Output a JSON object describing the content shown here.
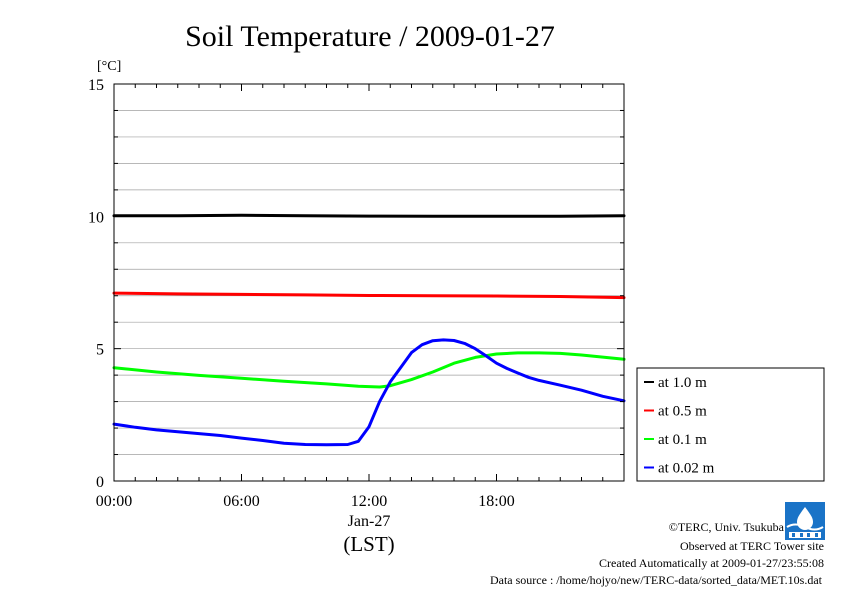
{
  "chart_data": {
    "type": "line",
    "title": "Soil Temperature / 2009-01-27",
    "yunit": "[°C]",
    "xlabel": "(LST)",
    "xdate_label": "Jan-27",
    "ylim": [
      0,
      15
    ],
    "xlim": [
      0,
      24
    ],
    "yticks": [
      0,
      5,
      10,
      15
    ],
    "xticks": [
      0,
      6,
      12,
      18
    ],
    "xtick_labels": [
      "00:00",
      "06:00",
      "12:00",
      "18:00"
    ],
    "grid": true,
    "legend_position": "right",
    "series": [
      {
        "name": "at 1.0 m",
        "color": "#000000",
        "x": [
          0,
          3,
          6,
          9,
          12,
          15,
          18,
          21,
          24
        ],
        "y": [
          10.02,
          10.02,
          10.04,
          10.02,
          10.01,
          10.0,
          10.0,
          10.0,
          10.02
        ]
      },
      {
        "name": "at 0.5 m",
        "color": "#ff0000",
        "x": [
          0,
          3,
          6,
          9,
          12,
          15,
          18,
          21,
          24
        ],
        "y": [
          7.1,
          7.07,
          7.05,
          7.03,
          7.01,
          7.0,
          6.99,
          6.97,
          6.93
        ]
      },
      {
        "name": "at 0.1 m",
        "color": "#00ff00",
        "x": [
          0,
          2,
          4,
          6,
          8,
          10,
          11.5,
          12.5,
          13,
          14,
          15,
          16,
          17,
          18,
          19,
          20,
          21,
          22,
          23,
          24
        ],
        "y": [
          4.28,
          4.12,
          3.99,
          3.88,
          3.77,
          3.67,
          3.58,
          3.55,
          3.6,
          3.83,
          4.12,
          4.45,
          4.67,
          4.8,
          4.84,
          4.84,
          4.82,
          4.76,
          4.68,
          4.6
        ]
      },
      {
        "name": "at 0.02 m",
        "color": "#0000ff",
        "x": [
          0,
          1,
          2,
          3,
          4,
          5,
          6,
          7,
          8,
          9,
          10,
          11,
          11.5,
          12,
          12.5,
          13,
          13.5,
          14,
          14.5,
          15,
          15.5,
          16,
          16.5,
          17,
          17.5,
          18,
          18.5,
          19,
          19.5,
          20,
          21,
          22,
          23,
          24
        ],
        "y": [
          2.15,
          2.03,
          1.93,
          1.86,
          1.79,
          1.72,
          1.62,
          1.53,
          1.43,
          1.38,
          1.37,
          1.38,
          1.5,
          2.05,
          3.0,
          3.75,
          4.3,
          4.85,
          5.15,
          5.3,
          5.33,
          5.31,
          5.2,
          5.0,
          4.73,
          4.45,
          4.25,
          4.08,
          3.92,
          3.8,
          3.62,
          3.43,
          3.2,
          3.03
        ]
      }
    ]
  },
  "footer": {
    "copyright": "©TERC, Univ. Tsukuba",
    "observed": "Observed at TERC Tower site",
    "created": "Created Automatically at 2009-01-27/23:55:08",
    "source": "Data source : /home/hojyo/new/TERC-data/sorted_data/MET.10s.dat"
  }
}
